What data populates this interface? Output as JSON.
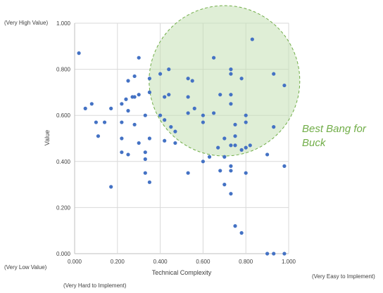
{
  "chart_data": {
    "type": "scatter",
    "title": "",
    "xlabel": "Technical Complexity",
    "ylabel": "Value",
    "xlim": [
      0,
      1
    ],
    "ylim": [
      0,
      1
    ],
    "x_ticks": [
      "0.000",
      "0.200",
      "0.400",
      "0.600",
      "0.800",
      "1.000"
    ],
    "y_ticks": [
      "0.000",
      "0.200",
      "0.400",
      "0.600",
      "0.800",
      "1.000"
    ],
    "grid": true,
    "legend": "none",
    "point_color": "#4472C4",
    "annotation": {
      "line1": "Best Bang for",
      "line2": "Buck",
      "color": "#70AD47",
      "region": {
        "cx": 0.7,
        "cy": 0.75,
        "note_shape": "dashed circle"
      }
    },
    "corner_labels": {
      "y_high": "(Very High Value)",
      "y_low": "(Very Low Value)",
      "x_high": "(Very Easy to Implement)",
      "x_low": "(Very Hard to Implement)"
    },
    "points": [
      [
        0.02,
        0.87
      ],
      [
        0.05,
        0.63
      ],
      [
        0.08,
        0.65
      ],
      [
        0.1,
        0.57
      ],
      [
        0.11,
        0.51
      ],
      [
        0.14,
        0.57
      ],
      [
        0.17,
        0.63
      ],
      [
        0.17,
        0.29
      ],
      [
        0.22,
        0.65
      ],
      [
        0.22,
        0.57
      ],
      [
        0.22,
        0.5
      ],
      [
        0.22,
        0.44
      ],
      [
        0.24,
        0.67
      ],
      [
        0.25,
        0.75
      ],
      [
        0.25,
        0.62
      ],
      [
        0.25,
        0.43
      ],
      [
        0.27,
        0.68
      ],
      [
        0.28,
        0.77
      ],
      [
        0.28,
        0.68
      ],
      [
        0.28,
        0.56
      ],
      [
        0.3,
        0.85
      ],
      [
        0.3,
        0.69
      ],
      [
        0.3,
        0.48
      ],
      [
        0.33,
        0.6
      ],
      [
        0.33,
        0.44
      ],
      [
        0.33,
        0.41
      ],
      [
        0.33,
        0.35
      ],
      [
        0.35,
        0.76
      ],
      [
        0.35,
        0.7
      ],
      [
        0.35,
        0.5
      ],
      [
        0.35,
        0.31
      ],
      [
        0.4,
        0.78
      ],
      [
        0.4,
        0.6
      ],
      [
        0.42,
        0.68
      ],
      [
        0.42,
        0.58
      ],
      [
        0.42,
        0.49
      ],
      [
        0.44,
        0.8
      ],
      [
        0.44,
        0.69
      ],
      [
        0.45,
        0.55
      ],
      [
        0.47,
        0.53
      ],
      [
        0.47,
        0.48
      ],
      [
        0.53,
        0.76
      ],
      [
        0.53,
        0.68
      ],
      [
        0.53,
        0.61
      ],
      [
        0.53,
        0.35
      ],
      [
        0.55,
        0.75
      ],
      [
        0.56,
        0.63
      ],
      [
        0.6,
        0.6
      ],
      [
        0.6,
        0.57
      ],
      [
        0.6,
        0.4
      ],
      [
        0.63,
        0.42
      ],
      [
        0.65,
        0.85
      ],
      [
        0.65,
        0.61
      ],
      [
        0.67,
        0.46
      ],
      [
        0.68,
        0.69
      ],
      [
        0.68,
        0.36
      ],
      [
        0.7,
        0.5
      ],
      [
        0.7,
        0.42
      ],
      [
        0.7,
        0.3
      ],
      [
        0.73,
        0.8
      ],
      [
        0.73,
        0.78
      ],
      [
        0.73,
        0.69
      ],
      [
        0.73,
        0.65
      ],
      [
        0.73,
        0.47
      ],
      [
        0.73,
        0.38
      ],
      [
        0.73,
        0.36
      ],
      [
        0.73,
        0.26
      ],
      [
        0.75,
        0.56
      ],
      [
        0.75,
        0.51
      ],
      [
        0.75,
        0.47
      ],
      [
        0.75,
        0.12
      ],
      [
        0.78,
        0.76
      ],
      [
        0.78,
        0.45
      ],
      [
        0.78,
        0.09
      ],
      [
        0.8,
        0.6
      ],
      [
        0.8,
        0.57
      ],
      [
        0.8,
        0.46
      ],
      [
        0.8,
        0.35
      ],
      [
        0.82,
        0.47
      ],
      [
        0.83,
        0.93
      ],
      [
        0.9,
        0.43
      ],
      [
        0.9,
        0.0
      ],
      [
        0.93,
        0.78
      ],
      [
        0.93,
        0.55
      ],
      [
        0.93,
        0.0
      ],
      [
        0.98,
        0.73
      ],
      [
        0.98,
        0.38
      ],
      [
        0.98,
        0.0
      ]
    ]
  }
}
